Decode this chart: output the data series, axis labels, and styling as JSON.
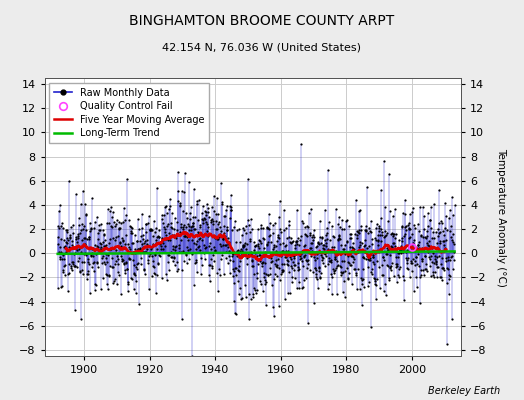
{
  "title": "BINGHAMTON BROOME COUNTY ARPT",
  "subtitle": "42.154 N, 76.036 W (United States)",
  "ylabel": "Temperature Anomaly (°C)",
  "attribution": "Berkeley Earth",
  "year_start": 1892,
  "year_end": 2013,
  "ylim": [
    -8.5,
    14.5
  ],
  "yticks": [
    -8,
    -6,
    -4,
    -2,
    0,
    2,
    4,
    6,
    8,
    10,
    12,
    14
  ],
  "xticks": [
    1900,
    1920,
    1940,
    1960,
    1980,
    2000
  ],
  "xlim_left": 1888,
  "xlim_right": 2015,
  "bg_color": "#ececec",
  "plot_bg_color": "#ffffff",
  "grid_color": "#cccccc",
  "raw_line_color": "#2222cc",
  "raw_marker_color": "#000000",
  "qc_color": "#ff44ff",
  "moving_avg_color": "#dd0000",
  "trend_color": "#00bb00",
  "seed": 17,
  "n_months": 1460
}
